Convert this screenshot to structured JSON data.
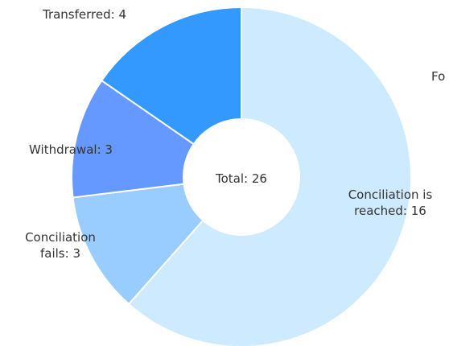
{
  "chart_data": {
    "type": "donut",
    "center_label": "Total: 26",
    "value_labels": [
      "Conciliation is reached: 16",
      "Conciliation fails: 3",
      "Withdrawal: 3",
      "Transferred: 4",
      "Fo"
    ],
    "values": [
      16,
      3,
      3,
      4,
      0
    ],
    "colors": [
      "#cdeafe",
      "#99ccff",
      "#6699ff",
      "#3399ff",
      "#0066cc"
    ]
  }
}
